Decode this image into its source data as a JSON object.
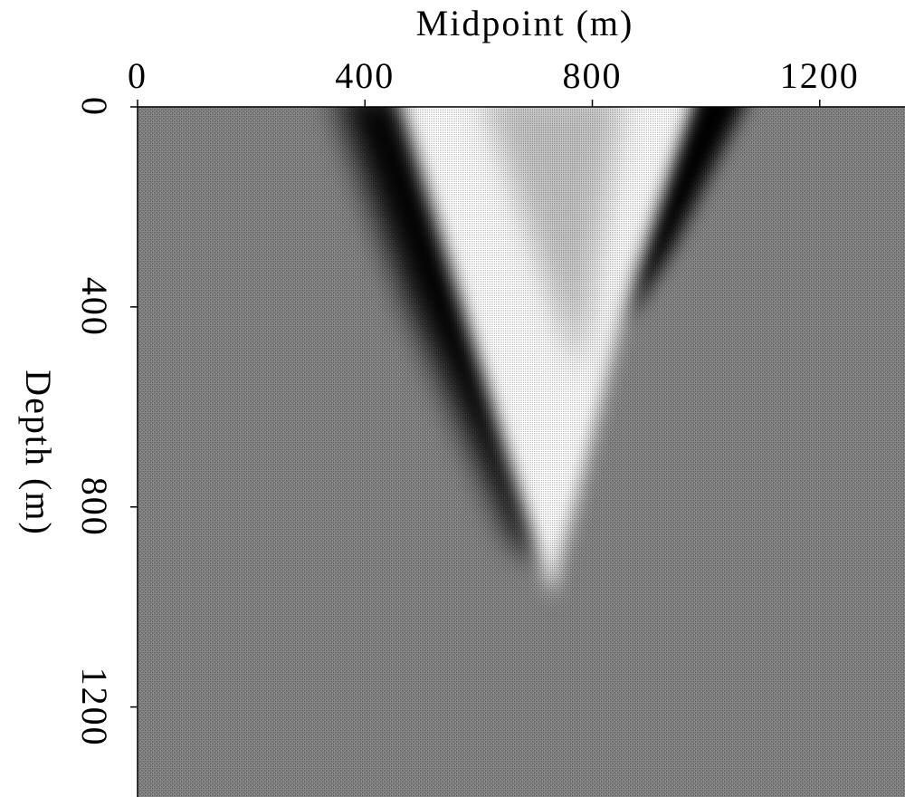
{
  "chart_data": {
    "type": "image",
    "xlabel": "Midpoint (m)",
    "ylabel": "Depth (m)",
    "xlim": [
      0,
      1350
    ],
    "xticks": [
      0,
      400,
      800,
      1200
    ],
    "ylim": [
      0,
      1380
    ],
    "yticks": [
      0,
      400,
      800,
      1200
    ]
  }
}
